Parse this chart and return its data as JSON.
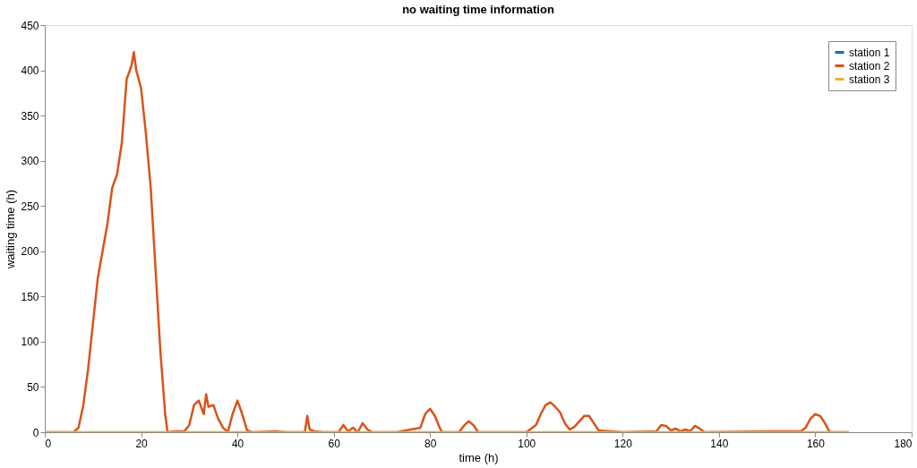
{
  "chart_data": {
    "type": "line",
    "title": "no waiting time information",
    "xlabel": "time (h)",
    "ylabel": "waiting time (h)",
    "xlim": [
      0,
      180
    ],
    "xticks": [
      0,
      20,
      40,
      60,
      80,
      100,
      120,
      140,
      160,
      180
    ],
    "ylim": [
      0,
      450
    ],
    "yticks": [
      0,
      50,
      100,
      150,
      200,
      250,
      300,
      350,
      400,
      450
    ],
    "grid": false,
    "legend": "top right",
    "marker": "none",
    "line_style": "solid",
    "series": [
      {
        "name": "station 1",
        "color": "#0072bd"
      },
      {
        "name": "station 2",
        "color": "#d95319",
        "x": [
          0,
          6,
          7,
          8,
          9,
          10,
          11,
          12,
          13,
          14,
          15,
          16,
          17,
          18,
          18.5,
          19,
          20,
          21,
          22,
          23,
          24,
          25,
          25.5,
          27,
          29,
          30,
          31,
          32,
          33,
          33.5,
          34,
          35,
          36,
          37,
          38,
          39,
          40,
          41,
          42,
          43,
          48,
          50,
          54,
          54.5,
          55,
          56,
          58,
          61,
          62,
          63,
          64,
          65,
          66,
          67,
          68,
          73,
          78,
          79,
          80,
          81,
          82,
          82.5,
          86,
          87,
          88,
          89,
          90,
          100,
          102,
          103,
          104,
          105,
          106,
          107,
          108,
          109,
          110,
          111,
          112,
          113,
          114,
          115,
          120,
          127,
          128,
          129,
          130,
          131,
          132,
          133,
          134,
          135,
          136,
          137,
          150,
          157,
          158,
          159,
          160,
          161,
          162,
          163,
          167
        ],
        "values": [
          0,
          0,
          5,
          30,
          70,
          120,
          170,
          200,
          230,
          270,
          285,
          320,
          390,
          405,
          420,
          400,
          380,
          330,
          270,
          180,
          90,
          20,
          0,
          1,
          1,
          8,
          30,
          35,
          20,
          42,
          28,
          30,
          15,
          5,
          0,
          20,
          35,
          20,
          2,
          0,
          1,
          0,
          0,
          18,
          3,
          1,
          0,
          0,
          8,
          1,
          5,
          0,
          10,
          3,
          0,
          0,
          5,
          20,
          26,
          18,
          5,
          0,
          0,
          7,
          12,
          8,
          0,
          0,
          8,
          20,
          30,
          33,
          28,
          22,
          10,
          3,
          6,
          12,
          18,
          18,
          10,
          2,
          0,
          1,
          8,
          7,
          2,
          4,
          1,
          3,
          1,
          7,
          4,
          0,
          1,
          1,
          5,
          15,
          20,
          18,
          10,
          0,
          0
        ]
      },
      {
        "name": "station 3",
        "color": "#edb120",
        "x": [
          0,
          167
        ],
        "values": [
          0,
          0
        ]
      }
    ]
  }
}
